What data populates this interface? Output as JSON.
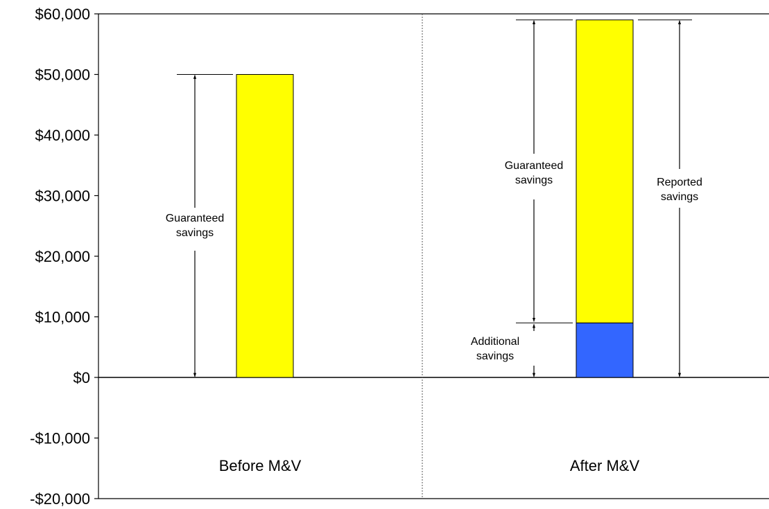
{
  "chart_data": {
    "type": "bar",
    "stacked": true,
    "categories": [
      "Before M&V",
      "After M&V"
    ],
    "series": [
      {
        "values": [
          0,
          9000
        ],
        "color": "#3366ff"
      },
      {
        "values": [
          50000,
          50000
        ],
        "color": "#ffff00"
      }
    ],
    "ylim": [
      -20000,
      60000
    ],
    "yticks": [
      -20000,
      -10000,
      0,
      10000,
      20000,
      30000,
      40000,
      50000,
      60000
    ],
    "ytick_labels": [
      "-$20,000",
      "-$10,000",
      "$0",
      "$10,000",
      "$20,000",
      "$30,000",
      "$40,000",
      "$50,000",
      "$60,000"
    ],
    "annotations": {
      "before_guaranteed": [
        "Guaranteed",
        "savings"
      ],
      "after_guaranteed": [
        "Guaranteed",
        "savings"
      ],
      "after_additional": [
        "Additional",
        "savings"
      ],
      "after_reported": [
        "Reported",
        "savings"
      ]
    },
    "grid": false,
    "legend": "none"
  }
}
